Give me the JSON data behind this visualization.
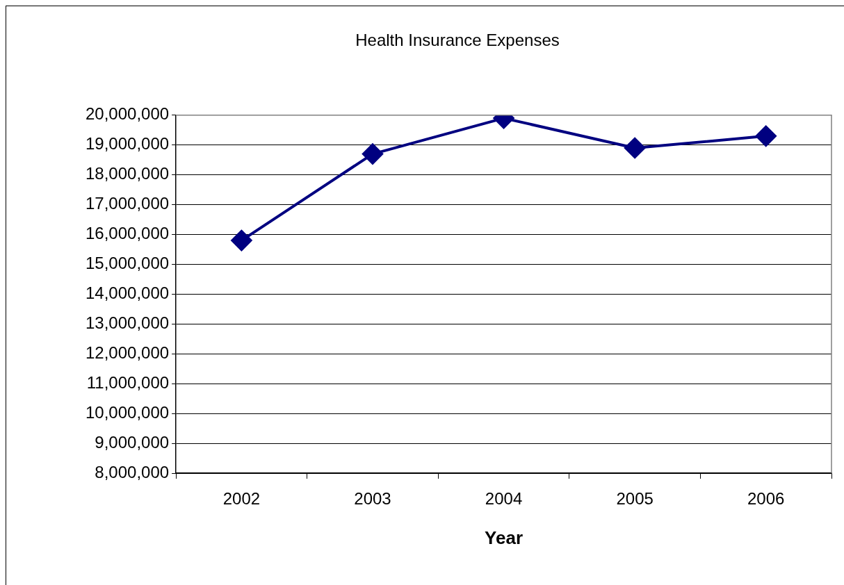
{
  "chart_data": {
    "type": "line",
    "title": "Health Insurance Expenses",
    "xlabel": "Year",
    "categories": [
      "2002",
      "2003",
      "2004",
      "2005",
      "2006"
    ],
    "series": [
      {
        "color": "#000080",
        "values": [
          15800000,
          18700000,
          19900000,
          18900000,
          19300000
        ]
      }
    ],
    "ylim": [
      8000000,
      20000000
    ],
    "yticks": [
      {
        "value": 8000000,
        "label": "8,000,000"
      },
      {
        "value": 9000000,
        "label": "9,000,000"
      },
      {
        "value": 10000000,
        "label": "10,000,000"
      },
      {
        "value": 11000000,
        "label": "11,000,000"
      },
      {
        "value": 12000000,
        "label": "12,000,000"
      },
      {
        "value": 13000000,
        "label": "13,000,000"
      },
      {
        "value": 14000000,
        "label": "14,000,000"
      },
      {
        "value": 15000000,
        "label": "15,000,000"
      },
      {
        "value": 16000000,
        "label": "16,000,000"
      },
      {
        "value": 17000000,
        "label": "17,000,000"
      },
      {
        "value": 18000000,
        "label": "18,000,000"
      },
      {
        "value": 19000000,
        "label": "19,000,000"
      },
      {
        "value": 20000000,
        "label": "20,000,000"
      }
    ],
    "grid": "y",
    "legend": false,
    "marker": "diamond",
    "line_style": "solid"
  }
}
